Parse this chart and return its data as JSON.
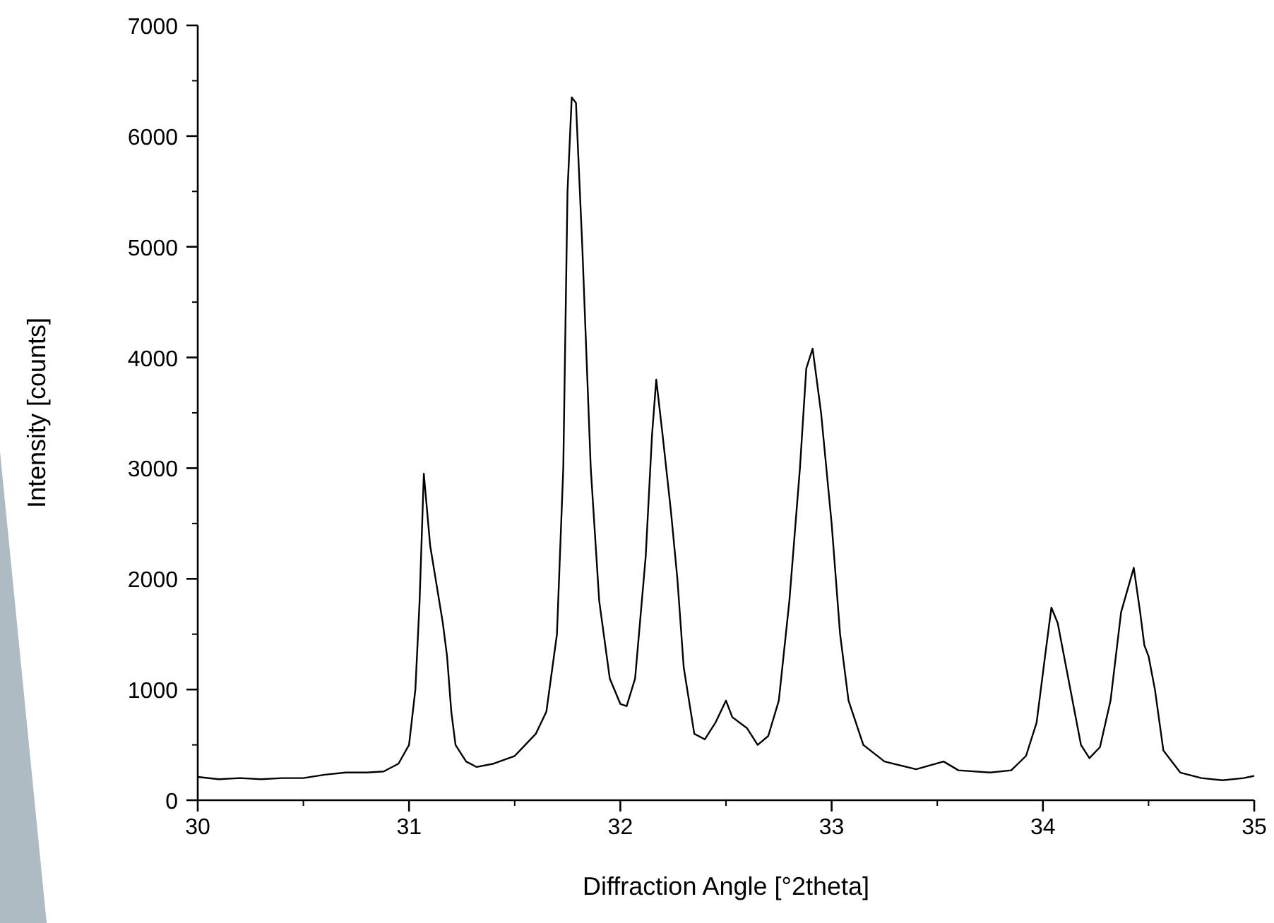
{
  "chart_data": {
    "type": "line",
    "xlabel": "Diffraction Angle [°2theta]",
    "ylabel": "Intensity [counts]",
    "xlim": [
      30,
      35
    ],
    "xticks": [
      30,
      31,
      32,
      33,
      34,
      35
    ],
    "ylim": [
      0,
      7000
    ],
    "yticks": [
      0,
      1000,
      2000,
      3000,
      4000,
      5000,
      6000,
      7000
    ],
    "grid": false,
    "marker": "none",
    "line_style": "solid",
    "series": [
      {
        "color": "#000000",
        "x": [
          30.0,
          30.1,
          30.2,
          30.3,
          30.4,
          30.5,
          30.6,
          30.7,
          30.8,
          30.88,
          30.95,
          31.0,
          31.03,
          31.05,
          31.07,
          31.1,
          31.13,
          31.16,
          31.18,
          31.2,
          31.22,
          31.27,
          31.32,
          31.4,
          31.5,
          31.55,
          31.6,
          31.65,
          31.7,
          31.73,
          31.75,
          31.77,
          31.79,
          31.82,
          31.86,
          31.9,
          31.95,
          32.0,
          32.03,
          32.07,
          32.12,
          32.15,
          32.17,
          32.2,
          32.24,
          32.27,
          32.3,
          32.35,
          32.4,
          32.45,
          32.5,
          32.53,
          32.6,
          32.65,
          32.7,
          32.75,
          32.8,
          32.85,
          32.88,
          32.91,
          32.95,
          33.0,
          33.04,
          33.08,
          33.15,
          33.25,
          33.4,
          33.53,
          33.6,
          33.75,
          33.85,
          33.92,
          33.97,
          34.01,
          34.04,
          34.07,
          34.1,
          34.14,
          34.18,
          34.22,
          34.27,
          34.32,
          34.37,
          34.43,
          34.46,
          34.48,
          34.5,
          34.53,
          34.57,
          34.65,
          34.75,
          34.85,
          34.95,
          35.0
        ],
        "values": [
          210,
          190,
          200,
          190,
          200,
          200,
          230,
          250,
          250,
          260,
          330,
          500,
          1000,
          1800,
          2950,
          2300,
          1950,
          1600,
          1300,
          800,
          500,
          350,
          300,
          330,
          400,
          500,
          600,
          800,
          1500,
          3000,
          5500,
          6350,
          6300,
          5000,
          3000,
          1800,
          1100,
          870,
          850,
          1100,
          2200,
          3300,
          3800,
          3300,
          2600,
          2000,
          1200,
          600,
          550,
          700,
          900,
          750,
          650,
          500,
          580,
          900,
          1800,
          3000,
          3900,
          4080,
          3500,
          2500,
          1500,
          900,
          500,
          350,
          280,
          350,
          270,
          250,
          270,
          400,
          700,
          1300,
          1740,
          1600,
          1300,
          900,
          500,
          380,
          480,
          900,
          1700,
          2100,
          1700,
          1400,
          1300,
          1000,
          450,
          250,
          200,
          180,
          200,
          220
        ]
      }
    ]
  }
}
